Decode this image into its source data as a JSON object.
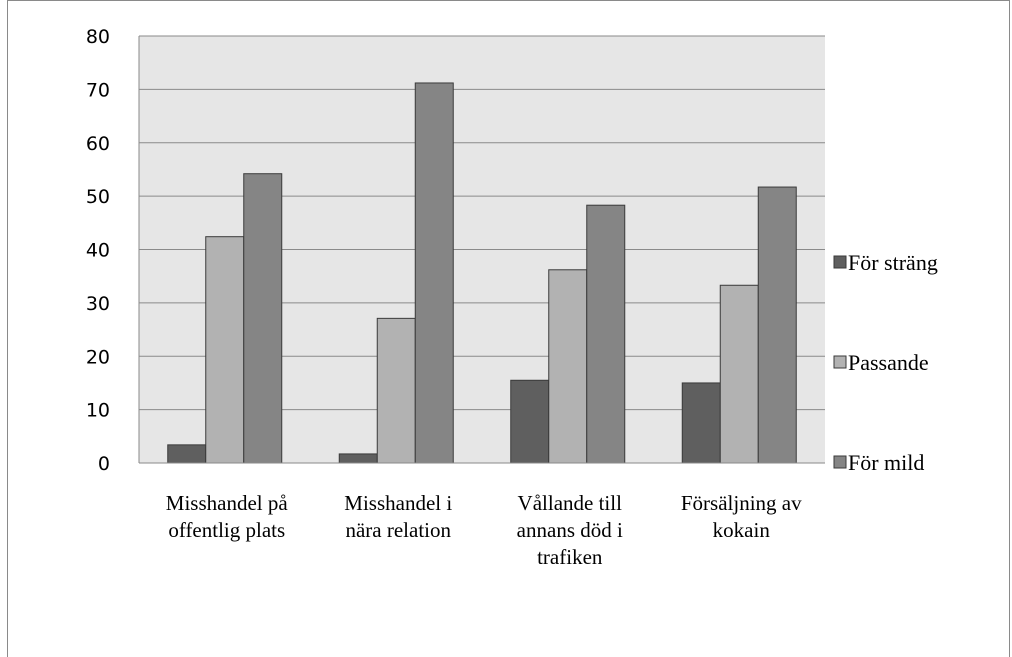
{
  "chart_data": {
    "type": "bar",
    "categories": [
      [
        "Misshandel på",
        "offentlig plats"
      ],
      [
        "Misshandel i",
        "nära relation"
      ],
      [
        "Vållande till",
        "annans död i",
        "trafiken"
      ],
      [
        "Försäljning av",
        "kokain"
      ]
    ],
    "series": [
      {
        "name": "För sträng",
        "color": "#5f5f5f",
        "values": [
          3.4,
          1.7,
          15.5,
          15.0
        ]
      },
      {
        "name": "Passande",
        "color": "#b2b2b2",
        "values": [
          42.4,
          27.1,
          36.2,
          33.3
        ]
      },
      {
        "name": "För mild",
        "color": "#858585",
        "values": [
          54.2,
          71.2,
          48.3,
          51.7
        ]
      }
    ],
    "yticks": [
      0,
      10,
      20,
      30,
      40,
      50,
      60,
      70,
      80
    ],
    "ylim": [
      0,
      80
    ],
    "grid": true,
    "legend_position": "right",
    "plot_background": "#e6e6e6"
  }
}
